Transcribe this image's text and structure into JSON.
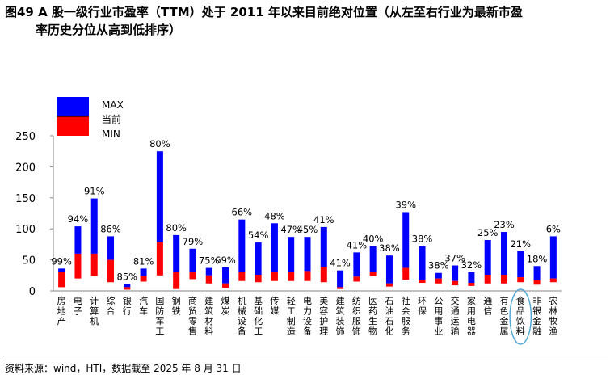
{
  "title_line1": "图49 A 股一级行业市盈率（TTM）处于 2011 年以来目前绝对位置（从左至右行业为最新市盈",
  "title_line2": "率历史分位从高到低排序）",
  "source": "资料来源：wind，HTI，数据截至 2025 年 8 月 31 日",
  "colors": {
    "max": "#0000ff",
    "min": "#ff0000",
    "highlight": "#55a9d8",
    "axis": "#868686"
  },
  "chart_data": {
    "type": "bar",
    "title": "",
    "xlabel": "",
    "ylabel": "",
    "ylim": [
      0,
      250
    ],
    "yticks": [
      "0",
      "50",
      "100",
      "150",
      "200",
      "250"
    ],
    "legend": [
      {
        "key": "max",
        "label": "MAX"
      },
      {
        "key": "current",
        "label": "当前"
      },
      {
        "key": "min",
        "label": "MIN"
      }
    ],
    "legend_placement": "top-left",
    "highlight_category": "食品饮料",
    "categories": [
      "房地产",
      "电子",
      "计算机",
      "综合",
      "银行",
      "汽车",
      "国防军工",
      "钢铁",
      "商贸零售",
      "建筑材料",
      "煤炭",
      "机械设备",
      "基础化工",
      "传媒",
      "轻工制造",
      "电力设备",
      "美容护理",
      "建筑装饰",
      "纺织服饰",
      "医药生物",
      "石油石化",
      "社会服务",
      "环保",
      "公用事业",
      "交通运输",
      "家用电器",
      "通信",
      "有色金属",
      "食品饮料",
      "非银金融",
      "农林牧渔"
    ],
    "series": [
      {
        "name": "MAX",
        "values": [
          36,
          104,
          149,
          88,
          11,
          36,
          225,
          90,
          68,
          37,
          38,
          115,
          78,
          109,
          87,
          87,
          103,
          33,
          62,
          72,
          57,
          127,
          72,
          29,
          41,
          30,
          82,
          95,
          64,
          40,
          88
        ]
      },
      {
        "name": "当前",
        "values": [
          30,
          60,
          60,
          50,
          6,
          24,
          78,
          30,
          31,
          25,
          12,
          30,
          26,
          31,
          31,
          32,
          39,
          6,
          23,
          31,
          12,
          37,
          18,
          20,
          16,
          13,
          26,
          26,
          22,
          17,
          20
        ]
      },
      {
        "name": "MIN",
        "values": [
          6,
          20,
          24,
          14,
          2,
          15,
          25,
          3,
          19,
          12,
          5,
          16,
          14,
          16,
          16,
          16,
          14,
          3,
          15,
          24,
          7,
          18,
          13,
          12,
          9,
          8,
          12,
          12,
          14,
          10,
          14
        ]
      }
    ],
    "percentile_labels": [
      "99%",
      "94%",
      "91%",
      "86%",
      "85%",
      "81%",
      "80%",
      "80%",
      "79%",
      "75%",
      "69%",
      "66%",
      "54%",
      "48%",
      "47%",
      "45%",
      "41%",
      "41%",
      "41%",
      "40%",
      "38%",
      "39%",
      "38%",
      "38%",
      "37%",
      "32%",
      "25%",
      "23%",
      "21%",
      "18%",
      "6%"
    ]
  }
}
